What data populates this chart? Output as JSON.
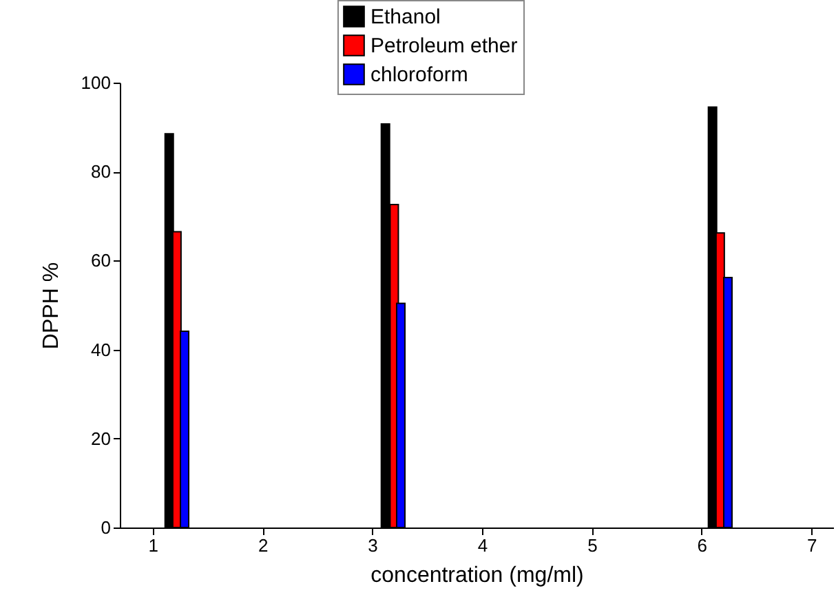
{
  "chart_data": {
    "type": "bar",
    "xlabel": "concentration (mg/ml)",
    "ylabel": "DPPH %",
    "xlim": [
      0.7,
      7.2
    ],
    "xticks": [
      1,
      2,
      3,
      4,
      5,
      6,
      7
    ],
    "ylim": [
      0,
      100
    ],
    "yticks": [
      0,
      20,
      40,
      60,
      80,
      100
    ],
    "grid": false,
    "legend": "top",
    "series": [
      {
        "name": "Ethanol",
        "color": "#000000",
        "x": [
          1.15,
          3.12,
          6.1
        ],
        "values": [
          88.5,
          90.7,
          94.5
        ]
      },
      {
        "name": "Petroleum ether",
        "color": "#ff0000",
        "x": [
          1.22,
          3.2,
          6.17
        ],
        "values": [
          66.5,
          72.6,
          66.2
        ]
      },
      {
        "name": "chloroform",
        "color": "#0000ff",
        "x": [
          1.29,
          3.26,
          6.24
        ],
        "values": [
          44.1,
          50.4,
          56.2
        ]
      }
    ]
  }
}
